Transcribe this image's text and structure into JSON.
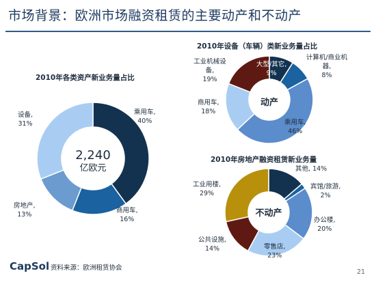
{
  "slide": {
    "title": "市场背景：欧洲市场融资租赁的主要动产和不动产",
    "source": "资料来源：欧洲租赁协会",
    "page_number": "21",
    "logo": "CapSol"
  },
  "chart_data": [
    {
      "type": "pie",
      "title": "2010年各类资产新业务量占比",
      "center_value": "2,240",
      "center_unit": "亿欧元",
      "slices": [
        {
          "label": "乘用车,",
          "pct": "40%",
          "value": 40,
          "color": "#13324f"
        },
        {
          "label": "商用车,",
          "pct": "16%",
          "value": 16,
          "color": "#1a62a0"
        },
        {
          "label": "房地产,",
          "pct": "13%",
          "value": 13,
          "color": "#6b9bcf"
        },
        {
          "label": "设备,",
          "pct": "31%",
          "value": 31,
          "color": "#a9cdf2"
        }
      ]
    },
    {
      "type": "pie",
      "title": "2010年设备（车辆）类新业务量占比",
      "center_word": "动产",
      "slices": [
        {
          "label": "大型/其它,",
          "pct": "9%",
          "value": 9,
          "color": "#13324f"
        },
        {
          "label": "计算机/商业机器,",
          "pct": "8%",
          "value": 8,
          "color": "#1a62a0"
        },
        {
          "label": "乘用车,",
          "pct": "46%",
          "value": 46,
          "color": "#5b8ccc"
        },
        {
          "label": "商用车,",
          "pct": "18%",
          "value": 18,
          "color": "#a9cdf2"
        },
        {
          "label": "工业机械设备,",
          "pct": "19%",
          "value": 19,
          "color": "#5e1a12"
        }
      ]
    },
    {
      "type": "pie",
      "title": "2010年房地产融资租赁新业务量",
      "center_word": "不动产",
      "slices": [
        {
          "label": "其他,",
          "pct": "14%",
          "value": 14,
          "color": "#13324f"
        },
        {
          "label": "宾馆/旅游,",
          "pct": "2%",
          "value": 2,
          "color": "#1a62a0"
        },
        {
          "label": "办公楼,",
          "pct": "20%",
          "value": 20,
          "color": "#5b8ccc"
        },
        {
          "label": "零售店,",
          "pct": "23%",
          "value": 23,
          "color": "#a9cdf2"
        },
        {
          "label": "公共设施,",
          "pct": "14%",
          "value": 14,
          "color": "#5e1a12"
        },
        {
          "label": "工业用楼,",
          "pct": "29%",
          "value": 29,
          "color": "#b8900c"
        }
      ]
    }
  ]
}
